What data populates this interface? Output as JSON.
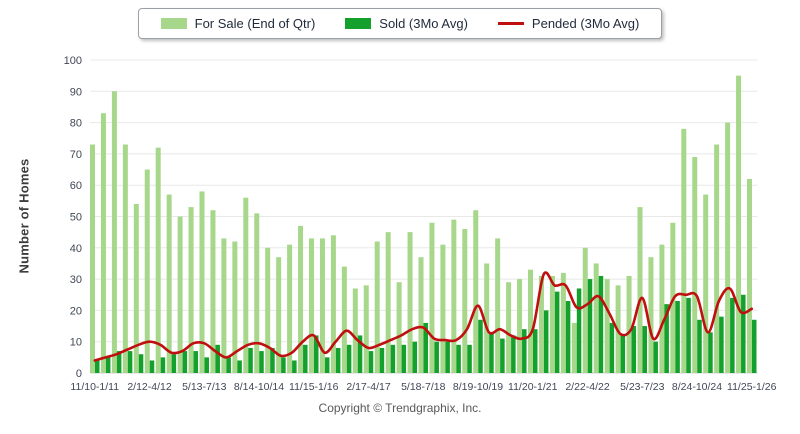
{
  "legend": {
    "items": [
      {
        "label": "For Sale (End of Qtr)",
        "color": "#a7d78a",
        "type": "bar"
      },
      {
        "label": "Sold (3Mo Avg)",
        "color": "#14a02c",
        "type": "bar"
      },
      {
        "label": "Pended (3Mo Avg)",
        "color": "#c00f0f",
        "type": "line"
      }
    ]
  },
  "y_axis_title": "Number of Homes",
  "footer_text": "Copyright © Trendgraphix, Inc.",
  "colors": {
    "for_sale": "#a7d78a",
    "sold": "#14a02c",
    "pended": "#c00f0f",
    "gridline": "#e8e8e8",
    "axis_line": "#d0d0d0",
    "tick_label": "#3f4756"
  },
  "chart_data": {
    "type": "bar",
    "subtype": "grouped-bars-with-line",
    "title": "",
    "xlabel": "",
    "ylabel": "Number of Homes",
    "ylim": [
      0,
      100
    ],
    "y_ticks": [
      0,
      10,
      20,
      30,
      40,
      50,
      60,
      70,
      80,
      90,
      100
    ],
    "grid": true,
    "legend_position": "top-center",
    "n_groups": 61,
    "x_tick_every": 5,
    "x_tick_labels": [
      "11/10-1/11",
      "2/12-4/12",
      "5/13-7/13",
      "8/14-10/14",
      "11/15-1/16",
      "2/17-4/17",
      "5/18-7/18",
      "8/19-10/19",
      "11/20-1/21",
      "2/22-4/22",
      "5/23-7/23",
      "8/24-10/24",
      "11/25-1/26"
    ],
    "series": [
      {
        "name": "For Sale (End of Qtr)",
        "type": "bar",
        "color": "#a7d78a",
        "values": [
          73,
          83,
          90,
          73,
          54,
          65,
          72,
          57,
          50,
          53,
          58,
          52,
          43,
          42,
          56,
          51,
          40,
          37,
          41,
          47,
          43,
          43,
          44,
          34,
          27,
          28,
          42,
          45,
          29,
          45,
          37,
          48,
          41,
          49,
          46,
          52,
          35,
          43,
          29,
          30,
          33,
          31,
          31,
          32,
          16,
          40,
          35,
          30,
          28,
          31,
          53,
          37,
          41,
          48,
          78,
          69,
          57,
          73,
          80,
          95,
          62
        ]
      },
      {
        "name": "Sold (3Mo Avg)",
        "type": "bar",
        "color": "#14a02c",
        "values": [
          4,
          5,
          7,
          7,
          6,
          4,
          5,
          6,
          7,
          7,
          5,
          9,
          5,
          4,
          8,
          7,
          8,
          5,
          4,
          9,
          12,
          5,
          8,
          9,
          12,
          7,
          8,
          9,
          9,
          10,
          16,
          10,
          10,
          9,
          9,
          17,
          13,
          11,
          12,
          14,
          14,
          20,
          26,
          23,
          27,
          30,
          31,
          16,
          12,
          15,
          15,
          10,
          22,
          23,
          24,
          17,
          13,
          18,
          24,
          25,
          17
        ]
      },
      {
        "name": "Pended (3Mo Avg)",
        "type": "line",
        "color": "#c00f0f",
        "values": [
          4,
          5,
          6,
          7.5,
          9,
          10,
          9,
          6.5,
          7,
          9.5,
          9.5,
          7,
          5,
          7,
          9,
          9.5,
          8,
          5.5,
          6.5,
          10,
          12,
          6.5,
          10,
          13.5,
          10.5,
          8,
          9,
          10.5,
          12,
          14,
          14.5,
          11,
          10.5,
          10.5,
          14,
          21.5,
          13,
          14,
          12,
          11,
          14,
          31.5,
          28,
          28,
          21,
          22,
          24.5,
          19,
          12.5,
          14,
          24,
          11,
          17,
          24.5,
          25,
          24.5,
          13,
          23,
          27,
          19.5,
          20.5
        ]
      }
    ]
  }
}
